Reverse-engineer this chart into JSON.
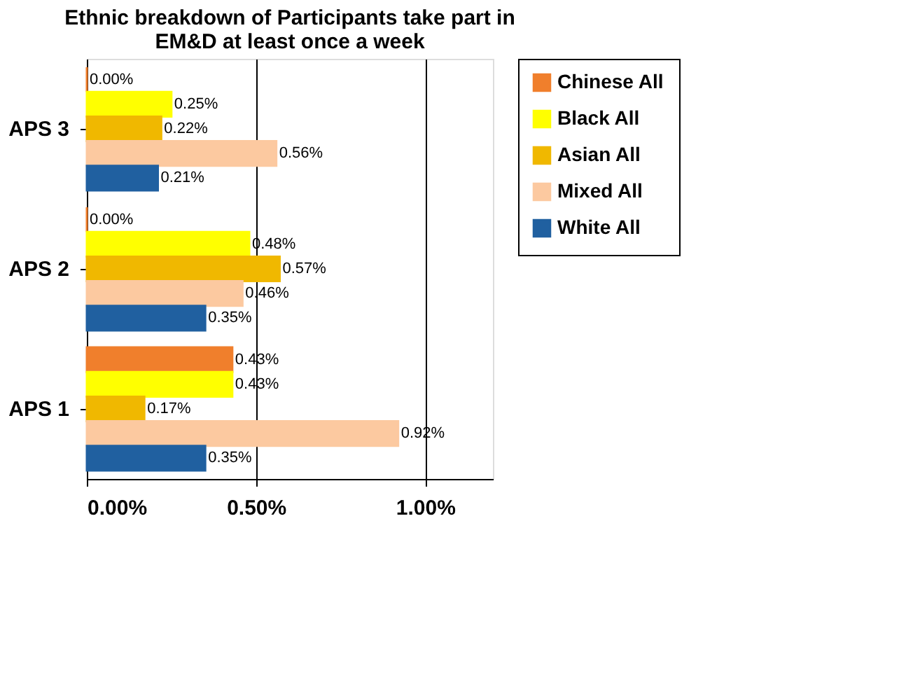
{
  "chart_data": {
    "type": "bar",
    "orientation": "horizontal",
    "title": [
      "Ethnic breakdown of Participants take part in",
      "EM&D at least once a week"
    ],
    "categories": [
      "APS 3",
      "APS 2",
      "APS 1"
    ],
    "series": [
      {
        "name": "Chinese All",
        "color": "#f07f2c",
        "values": [
          0.0,
          0.0,
          0.43
        ],
        "value_labels": [
          "0.00%",
          "0.00%",
          "0.43%"
        ]
      },
      {
        "name": "Black All",
        "color": "#ffff00",
        "values": [
          0.25,
          0.48,
          0.43
        ],
        "value_labels": [
          "0.25%",
          "0.48%",
          "0.43%"
        ]
      },
      {
        "name": "Asian All",
        "color": "#f0b800",
        "values": [
          0.22,
          0.57,
          0.17
        ],
        "value_labels": [
          "0.22%",
          "0.57%",
          "0.17%"
        ]
      },
      {
        "name": "Mixed All",
        "color": "#fcc9a0",
        "values": [
          0.56,
          0.46,
          0.92
        ],
        "value_labels": [
          "0.56%",
          "0.46%",
          "0.92%"
        ]
      },
      {
        "name": "White All",
        "color": "#2060a0",
        "values": [
          0.21,
          0.35,
          0.35
        ],
        "value_labels": [
          "0.21%",
          "0.35%",
          "0.35%"
        ]
      }
    ],
    "xlim": [
      0,
      1.2
    ],
    "xticks": [
      {
        "value": 0,
        "label": "0.00%"
      },
      {
        "value": 0.5,
        "label": "0.50%"
      },
      {
        "value": 1,
        "label": "1.00%"
      }
    ],
    "grid": "x",
    "legend": "right"
  }
}
